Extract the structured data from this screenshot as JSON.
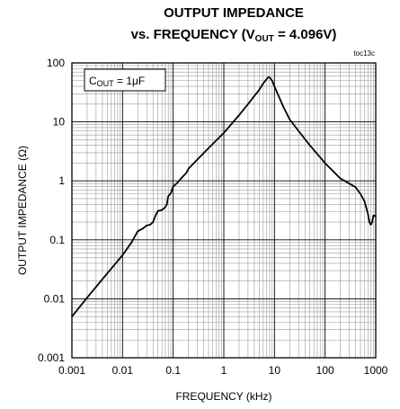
{
  "chart_data": {
    "type": "line",
    "title": {
      "line1": "OUTPUT IMPEDANCE",
      "line2_prefix": "vs. FREQUENCY (V",
      "line2_sub": "OUT",
      "line2_suffix": " = 4.096V)"
    },
    "tag": "toc13c",
    "xlabel": "FREQUENCY (kHz)",
    "ylabel": "OUTPUT IMPEDANCE (Ω)",
    "xscale": "log",
    "yscale": "log",
    "xlim": [
      0.001,
      1000
    ],
    "ylim": [
      0.001,
      100
    ],
    "x_ticks": [
      "0.001",
      "0.01",
      "0.1",
      "1",
      "10",
      "100",
      "1000"
    ],
    "y_ticks": [
      "0.001",
      "0.01",
      "0.1",
      "1",
      "10",
      "100"
    ],
    "grid": true,
    "legend": {
      "placement": "top-left",
      "prefix": "C",
      "sub": "OUT",
      "suffix": " = 1μF"
    },
    "series": [
      {
        "color": "#000000",
        "points": [
          [
            0.001,
            0.005
          ],
          [
            0.002,
            0.0105
          ],
          [
            0.005,
            0.027
          ],
          [
            0.01,
            0.055
          ],
          [
            0.015,
            0.09
          ],
          [
            0.02,
            0.14
          ],
          [
            0.025,
            0.155
          ],
          [
            0.03,
            0.175
          ],
          [
            0.035,
            0.18
          ],
          [
            0.04,
            0.2
          ],
          [
            0.045,
            0.26
          ],
          [
            0.05,
            0.31
          ],
          [
            0.06,
            0.32
          ],
          [
            0.07,
            0.36
          ],
          [
            0.075,
            0.4
          ],
          [
            0.08,
            0.55
          ],
          [
            0.09,
            0.62
          ],
          [
            0.1,
            0.8
          ],
          [
            0.12,
            0.92
          ],
          [
            0.15,
            1.15
          ],
          [
            0.18,
            1.35
          ],
          [
            0.2,
            1.6
          ],
          [
            0.3,
            2.3
          ],
          [
            0.5,
            3.6
          ],
          [
            1,
            6.5
          ],
          [
            2,
            13
          ],
          [
            3,
            20
          ],
          [
            5,
            35
          ],
          [
            6,
            45
          ],
          [
            7,
            53
          ],
          [
            7.5,
            57
          ],
          [
            8,
            57
          ],
          [
            9,
            50
          ],
          [
            10,
            40
          ],
          [
            15,
            18
          ],
          [
            20,
            11
          ],
          [
            30,
            7
          ],
          [
            50,
            4
          ],
          [
            100,
            2
          ],
          [
            200,
            1.1
          ],
          [
            300,
            0.9
          ],
          [
            400,
            0.78
          ],
          [
            500,
            0.6
          ],
          [
            600,
            0.45
          ],
          [
            700,
            0.28
          ],
          [
            750,
            0.2
          ],
          [
            800,
            0.18
          ],
          [
            850,
            0.2
          ],
          [
            900,
            0.26
          ],
          [
            1000,
            0.25
          ]
        ]
      }
    ]
  }
}
